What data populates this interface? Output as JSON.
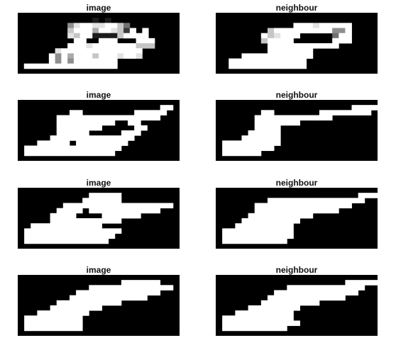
{
  "panels": [
    {
      "title": "image",
      "grid": [
        "0000000000000000000000000",
        "000000000000101000000000",
        "0000000058998899740000000",
        "00000000799969987290900000",
        "0000000087991111799990000",
        "00000000099009990009990000",
        "0000000099989999999777000",
        "0000008999999999999900000",
        "0000095969997999899800000",
        "0000095959999999000000000",
        "0999999999999999000000000",
        "0000000000000000000000000"
      ]
    },
    {
      "title": "neighbour",
      "grid": [
        "0000000000000000000000000",
        "0000000000000000000000000",
        "0000000000009998999990000",
        "0000000079999999995590000",
        "0000000978999000004990000",
        "0000000799990000009990000",
        "0000000099999999999000000",
        "0000000099999990000000000",
        "0000999999999990000000000",
        "0099999999999900000000000",
        "0099999999999900000000000",
        "0000000000000000000000000"
      ]
    },
    {
      "title": "image",
      "grid": [
        "0000000000000000000000000",
        "0000000000000000000000990",
        "0000000099000000009999900",
        "0000009999999999999999000",
        "0000009999999990099000000",
        "0000009999999000009900000",
        "0000009999900000999000000",
        "0000099999999999990000000",
        "0009999909999999900000000",
        "0999999999999999000000000",
        "0999999999999990000000000",
        "0000000000000000000000000"
      ]
    },
    {
      "title": "neighbour",
      "grid": [
        "0000000000000000000000000",
        "0000000000000000000009999",
        "0000000990000000999999990",
        "0000009999999999990000000",
        "0000009999999000000000000",
        "0000009999000000000000000",
        "0000099999000000000000000",
        "0000999999000000000000000",
        "0999999999000000000000000",
        "0999999990000000000000000",
        "0999999000000000000000000",
        "0000000000000000000000000"
      ]
    },
    {
      "title": "image",
      "grid": [
        "0000000000000000000000000",
        "0000000000099999000000000",
        "0000000000999999000000000",
        "0000000999999999999999990",
        "0000009999099999999999000",
        "0000099990000999999000000",
        "0000099999999999000000000",
        "0099999999999000000000000",
        "0999999999999999000000000",
        "0999999999999990000000000",
        "0999999999999900000000000",
        "0000000000000000000000000"
      ]
    },
    {
      "title": "neighbour",
      "grid": [
        "0000000000000000000000000",
        "0000000000000000000000999",
        "0000000099999999999999900",
        "0000009999999999999990000",
        "0000009999999999999000000",
        "0000099999999990000000000",
        "0000999999999000000000000",
        "0009999999990000000000000",
        "0999999999990000000000000",
        "0999999999990000000000000",
        "0999999999900000000000000",
        "0000000000000000000000000"
      ]
    },
    {
      "title": "image",
      "grid": [
        "0000000000000000000000000",
        "0000000000000000999999000",
        "0000000000099999999999990",
        "0000000009999999999999000",
        "0000000099999999999900000",
        "0000009999999999000000000",
        "0000099999999000000000000",
        "0009999999900000000000000",
        "0999999999000000000000000",
        "0999999999000000000000000",
        "0999999999000000000000000",
        "0000000000000000000000000"
      ]
    },
    {
      "title": "neighbour",
      "grid": [
        "0000000000000000000000000",
        "0000000000000000000099999",
        "0000000000099999999999900",
        "0000000009999999999999000",
        "0000000099999999999900000",
        "0000000999999999000000000",
        "0000099999999000000000000",
        "0009999999990000000000000",
        "0999999999990000000000000",
        "0999999999999000000000000",
        "0999999999900000000000000",
        "0000000000000000000000000"
      ]
    }
  ]
}
